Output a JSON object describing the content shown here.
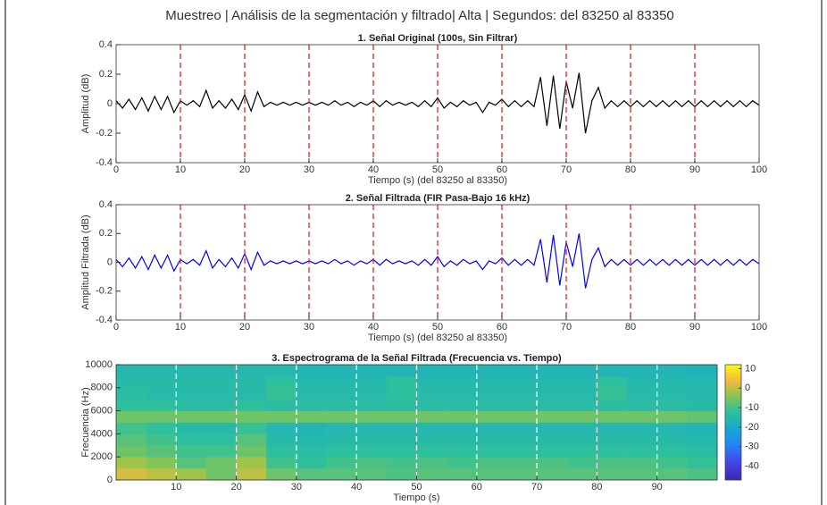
{
  "title": "Muestreo | Análisis de la segmentación y filtrado| Alta | Segundos: del 83250 al 83350",
  "chart_data": [
    {
      "type": "line",
      "title": "1. Señal Original (100s, Sin Filtrar)",
      "xlabel": "Tiempo (s) (del 83250 al 83350)",
      "ylabel": "Amplitud (dB)",
      "color": "#000000",
      "x": [
        0,
        1,
        2,
        3,
        4,
        5,
        6,
        7,
        8,
        9,
        10,
        11,
        12,
        13,
        14,
        15,
        16,
        17,
        18,
        19,
        20,
        21,
        22,
        23,
        24,
        25,
        26,
        27,
        28,
        29,
        30,
        31,
        32,
        33,
        34,
        35,
        36,
        37,
        38,
        39,
        40,
        41,
        42,
        43,
        44,
        45,
        46,
        47,
        48,
        49,
        50,
        51,
        52,
        53,
        54,
        55,
        56,
        57,
        58,
        59,
        60,
        61,
        62,
        63,
        64,
        65,
        66,
        67,
        68,
        69,
        70,
        71,
        72,
        73,
        74,
        75,
        76,
        77,
        78,
        79,
        80,
        81,
        82,
        83,
        84,
        85,
        86,
        87,
        88,
        89,
        90,
        91,
        92,
        93,
        94,
        95,
        96,
        97,
        98,
        99,
        100
      ],
      "values": [
        0.02,
        -0.03,
        0.03,
        -0.04,
        0.04,
        -0.05,
        0.05,
        -0.04,
        0.05,
        -0.06,
        0.02,
        -0.01,
        0.02,
        -0.02,
        0.09,
        -0.03,
        0.02,
        -0.03,
        0.03,
        -0.04,
        0.06,
        -0.05,
        0.08,
        -0.02,
        0.01,
        -0.01,
        0.01,
        -0.01,
        0.01,
        -0.01,
        0.01,
        -0.01,
        0.01,
        -0.01,
        0.02,
        -0.01,
        0.01,
        -0.02,
        0.01,
        -0.01,
        0.02,
        -0.02,
        0.02,
        -0.01,
        0.01,
        -0.01,
        0.01,
        -0.02,
        0.02,
        -0.02,
        0.04,
        -0.03,
        0.01,
        -0.02,
        0.02,
        -0.01,
        0.01,
        -0.06,
        0.01,
        -0.01,
        0.03,
        -0.02,
        0.02,
        -0.02,
        0.02,
        -0.02,
        0.18,
        -0.15,
        0.19,
        -0.17,
        0.15,
        -0.03,
        0.21,
        -0.2,
        0.02,
        0.11,
        -0.03,
        0.02,
        -0.02,
        0.02,
        -0.02,
        0.02,
        -0.02,
        0.02,
        -0.02,
        0.02,
        -0.02,
        0.02,
        -0.02,
        0.02,
        -0.02,
        0.02,
        -0.02,
        0.02,
        -0.02,
        0.02,
        -0.02,
        0.02,
        -0.02,
        0.02,
        -0.01
      ],
      "vlines": [
        10,
        20,
        30,
        40,
        50,
        60,
        70,
        80,
        90
      ],
      "vline_color": "#e8231f",
      "xlim": [
        0,
        100
      ],
      "xticks": [
        0,
        10,
        20,
        30,
        40,
        50,
        60,
        70,
        80,
        90,
        100
      ],
      "ylim": [
        -0.4,
        0.4
      ],
      "yticks": [
        -0.4,
        -0.2,
        0,
        0.2,
        0.4
      ]
    },
    {
      "type": "line",
      "title": "2. Señal Filtrada (FIR Pasa-Bajo 16 kHz)",
      "xlabel": "Tiempo (s) (del 83250 al 83350)",
      "ylabel": "Amplitud Filtrada (dB)",
      "color": "#0000ff",
      "x": [
        0,
        1,
        2,
        3,
        4,
        5,
        6,
        7,
        8,
        9,
        10,
        11,
        12,
        13,
        14,
        15,
        16,
        17,
        18,
        19,
        20,
        21,
        22,
        23,
        24,
        25,
        26,
        27,
        28,
        29,
        30,
        31,
        32,
        33,
        34,
        35,
        36,
        37,
        38,
        39,
        40,
        41,
        42,
        43,
        44,
        45,
        46,
        47,
        48,
        49,
        50,
        51,
        52,
        53,
        54,
        55,
        56,
        57,
        58,
        59,
        60,
        61,
        62,
        63,
        64,
        65,
        66,
        67,
        68,
        69,
        70,
        71,
        72,
        73,
        74,
        75,
        76,
        77,
        78,
        79,
        80,
        81,
        82,
        83,
        84,
        85,
        86,
        87,
        88,
        89,
        90,
        91,
        92,
        93,
        94,
        95,
        96,
        97,
        98,
        99,
        100
      ],
      "values": [
        0.02,
        -0.03,
        0.03,
        -0.04,
        0.04,
        -0.05,
        0.05,
        -0.04,
        0.05,
        -0.06,
        0.02,
        -0.01,
        0.02,
        -0.02,
        0.08,
        -0.04,
        0.02,
        -0.03,
        0.03,
        -0.04,
        0.06,
        -0.05,
        0.07,
        -0.02,
        0.01,
        -0.01,
        0.01,
        -0.01,
        0.01,
        -0.01,
        0.01,
        -0.01,
        0.01,
        -0.01,
        0.02,
        -0.01,
        0.01,
        -0.02,
        0.01,
        -0.01,
        0.02,
        -0.02,
        0.02,
        -0.01,
        0.01,
        -0.01,
        0.01,
        -0.02,
        0.02,
        -0.02,
        0.04,
        -0.03,
        0.01,
        -0.02,
        0.02,
        -0.01,
        0.01,
        -0.05,
        0.01,
        -0.01,
        0.03,
        -0.02,
        0.02,
        -0.02,
        0.02,
        -0.02,
        0.16,
        -0.14,
        0.19,
        -0.16,
        0.14,
        -0.03,
        0.2,
        -0.18,
        0.02,
        0.1,
        -0.03,
        0.02,
        -0.02,
        0.02,
        -0.02,
        0.02,
        -0.02,
        0.02,
        -0.02,
        0.02,
        -0.02,
        0.02,
        -0.02,
        0.02,
        -0.02,
        0.02,
        -0.02,
        0.02,
        -0.02,
        0.02,
        -0.02,
        0.02,
        -0.02,
        0.02,
        -0.01
      ],
      "vlines": [
        10,
        20,
        30,
        40,
        50,
        60,
        70,
        80,
        90
      ],
      "vline_color": "#e8231f",
      "xlim": [
        0,
        100
      ],
      "xticks": [
        0,
        10,
        20,
        30,
        40,
        50,
        60,
        70,
        80,
        90,
        100
      ],
      "ylim": [
        -0.4,
        0.4
      ],
      "yticks": [
        -0.4,
        -0.2,
        0,
        0.2,
        0.4
      ]
    },
    {
      "type": "heatmap",
      "title": "3. Espectrograma de la Señal Filtrada (Frecuencia vs. Tiempo)",
      "xlabel": "Tiempo (s)",
      "ylabel": "Frecuencia (Hz)",
      "xbins": [
        0,
        5,
        10,
        15,
        20,
        25,
        30,
        35,
        40,
        45,
        50,
        55,
        60,
        65,
        70,
        75,
        80,
        85,
        90,
        95,
        100
      ],
      "ybins": [
        0,
        1000,
        2000,
        3000,
        4000,
        5000,
        6000,
        7000,
        8000,
        9000,
        10000
      ],
      "values": [
        [
          2,
          0,
          -2,
          -6,
          0,
          -6,
          -8,
          -8,
          -8,
          -9,
          -8,
          -8,
          -8,
          -8,
          -8,
          -8,
          -8,
          -8,
          -8,
          -9
        ],
        [
          -2,
          -4,
          -8,
          -6,
          -2,
          -10,
          -12,
          -10,
          -9,
          -10,
          -9,
          -10,
          -9,
          -9,
          -9,
          -10,
          -9,
          -9,
          -10,
          -11
        ],
        [
          -6,
          -8,
          -10,
          -10,
          -6,
          -12,
          -13,
          -12,
          -12,
          -12,
          -12,
          -12,
          -12,
          -12,
          -12,
          -12,
          -12,
          -12,
          -12,
          -13
        ],
        [
          -8,
          -10,
          -12,
          -12,
          -8,
          -14,
          -15,
          -14,
          -14,
          -14,
          -14,
          -14,
          -14,
          -14,
          -14,
          -14,
          -14,
          -14,
          -14,
          -15
        ],
        [
          -10,
          -12,
          -14,
          -14,
          -11,
          -15,
          -16,
          -15,
          -15,
          -15,
          -15,
          -15,
          -15,
          -15,
          -15,
          -15,
          -15,
          -15,
          -15,
          -16
        ],
        [
          -6,
          -6,
          -6,
          -6,
          -6,
          -6,
          -6,
          -6,
          -6,
          -6,
          -6,
          -6,
          -6,
          -6,
          -6,
          -6,
          -6,
          -6,
          -6,
          -7
        ],
        [
          -12,
          -12,
          -13,
          -13,
          -12,
          -13,
          -13,
          -13,
          -13,
          -13,
          -13,
          -13,
          -13,
          -13,
          -13,
          -13,
          -13,
          -13,
          -13,
          -14
        ],
        [
          -13,
          -14,
          -14,
          -14,
          -14,
          -11,
          -14,
          -14,
          -14,
          -12,
          -14,
          -14,
          -14,
          -14,
          -14,
          -14,
          -11,
          -14,
          -14,
          -15
        ],
        [
          -14,
          -14,
          -14,
          -14,
          -14,
          -12,
          -15,
          -15,
          -15,
          -12,
          -15,
          -15,
          -15,
          -15,
          -15,
          -15,
          -12,
          -15,
          -15,
          -15
        ],
        [
          -15,
          -15,
          -15,
          -15,
          -15,
          -15,
          -16,
          -16,
          -16,
          -16,
          -16,
          -16,
          -16,
          -16,
          -16,
          -16,
          -16,
          -16,
          -16,
          -17
        ]
      ],
      "vlines": [
        10,
        20,
        30,
        40,
        50,
        60,
        70,
        80,
        90
      ],
      "vline_color": "#ffffff",
      "xlim": [
        0,
        100
      ],
      "xticks": [
        10,
        20,
        30,
        40,
        50,
        60,
        70,
        80,
        90
      ],
      "ylim": [
        0,
        10000
      ],
      "yticks": [
        0,
        2000,
        4000,
        6000,
        8000,
        10000
      ],
      "clim": [
        -47,
        12
      ],
      "cticks": [
        -40,
        -30,
        -20,
        -10,
        0,
        10
      ],
      "colormap": "parula"
    }
  ]
}
